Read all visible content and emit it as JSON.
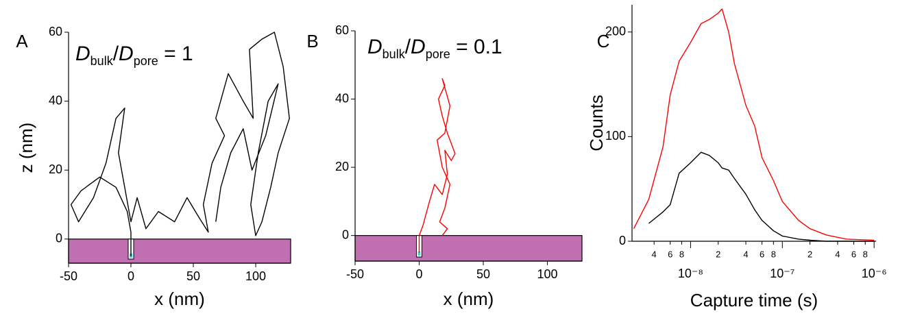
{
  "chart_data": [
    {
      "type": "line",
      "title": "A",
      "xlabel": "x (nm)",
      "ylabel": "z (nm)",
      "annotation": [
        "D",
        "bulk",
        "/",
        "D",
        "pore",
        " = 1"
      ],
      "color": "#000000",
      "x": [
        0,
        0,
        -3,
        -12,
        -25,
        -40,
        -48,
        -42,
        -30,
        -20,
        -12,
        -5,
        -10,
        -5,
        0,
        5,
        12,
        22,
        35,
        45,
        55,
        62,
        58,
        65,
        75,
        68,
        78,
        90,
        98,
        95,
        105,
        115,
        122,
        127,
        118,
        112,
        105,
        100,
        96,
        102,
        110,
        118,
        108,
        97,
        90,
        80,
        72,
        68
      ],
      "values": [
        -5,
        2,
        8,
        15,
        18,
        14,
        10,
        5,
        12,
        22,
        35,
        38,
        25,
        15,
        5,
        12,
        3,
        8,
        5,
        12,
        6,
        2,
        10,
        22,
        30,
        35,
        48,
        40,
        35,
        55,
        58,
        60,
        50,
        35,
        25,
        15,
        5,
        1,
        10,
        25,
        40,
        45,
        30,
        20,
        32,
        25,
        15,
        5
      ],
      "xlim": [
        -50,
        128
      ],
      "ylim": [
        -7,
        60
      ],
      "xticks": [
        -50,
        0,
        50,
        100
      ],
      "yticks": [
        0,
        20,
        40,
        60
      ]
    },
    {
      "type": "line",
      "title": "B",
      "xlabel": "x (nm)",
      "annotation": [
        "D",
        "bulk",
        "/",
        "D",
        "pore",
        " = 0.1"
      ],
      "color": "#ff0000",
      "x": [
        0,
        0,
        3,
        8,
        12,
        18,
        22,
        20,
        25,
        28,
        22,
        18,
        15,
        20,
        18,
        24,
        20,
        14,
        18,
        24,
        20,
        16,
        22,
        18
      ],
      "values": [
        -5,
        0,
        3,
        10,
        15,
        12,
        18,
        25,
        22,
        24,
        30,
        35,
        40,
        44,
        46,
        38,
        30,
        28,
        20,
        15,
        8,
        4,
        2,
        0
      ],
      "xlim": [
        -50,
        127
      ],
      "ylim": [
        -7.5,
        60
      ],
      "xticks": [
        -50,
        0,
        50,
        100
      ],
      "yticks": [
        0,
        20,
        40,
        60
      ]
    },
    {
      "type": "line",
      "title": "C",
      "xlabel": "Capture time (s)",
      "ylabel": "Counts",
      "log_x": true,
      "x": [
        2.4e-09,
        3.5e-09,
        5e-09,
        6e-09,
        7.5e-09,
        1e-08,
        1.3e-08,
        1.6e-08,
        2e-08,
        2.2e-08,
        2.6e-08,
        3e-08,
        4e-08,
        5e-08,
        6e-08,
        8e-08,
        1e-07,
        1.5e-07,
        2e-07,
        3e-07,
        5e-07,
        1e-06
      ],
      "series": [
        {
          "color": "#ff0000",
          "values": [
            12,
            40,
            90,
            140,
            172,
            190,
            208,
            212,
            218,
            222,
            200,
            170,
            130,
            110,
            80,
            58,
            38,
            20,
            12,
            6,
            2,
            1
          ]
        },
        {
          "color": "#000000",
          "values": [
            null,
            17,
            28,
            35,
            65,
            75,
            85,
            82,
            75,
            70,
            68,
            60,
            45,
            30,
            20,
            10,
            5,
            2,
            1,
            0,
            0,
            0
          ]
        }
      ],
      "xlim": [
        2.3e-09,
        1.05e-06
      ],
      "ylim": [
        0,
        226
      ],
      "yticks": [
        0,
        100,
        200
      ],
      "xticks": [
        {
          "value": 1e-08,
          "label": "10⁻⁸"
        },
        {
          "value": 1e-07,
          "label": "10⁻⁷"
        },
        {
          "value": 1e-06,
          "label": "10⁻⁶"
        }
      ],
      "xticks_minor": [
        {
          "value": 4e-09,
          "label": "4"
        },
        {
          "value": 6e-09,
          "label": "6"
        },
        {
          "value": 8e-09,
          "label": "8"
        },
        {
          "value": 2e-08,
          "label": "2"
        },
        {
          "value": 4e-08,
          "label": "4"
        },
        {
          "value": 6e-08,
          "label": "6"
        },
        {
          "value": 8e-08,
          "label": "8"
        },
        {
          "value": 2e-07,
          "label": "2"
        },
        {
          "value": 4e-07,
          "label": "4"
        },
        {
          "value": 6e-07,
          "label": "6"
        },
        {
          "value": 8e-07,
          "label": "8"
        }
      ]
    }
  ]
}
